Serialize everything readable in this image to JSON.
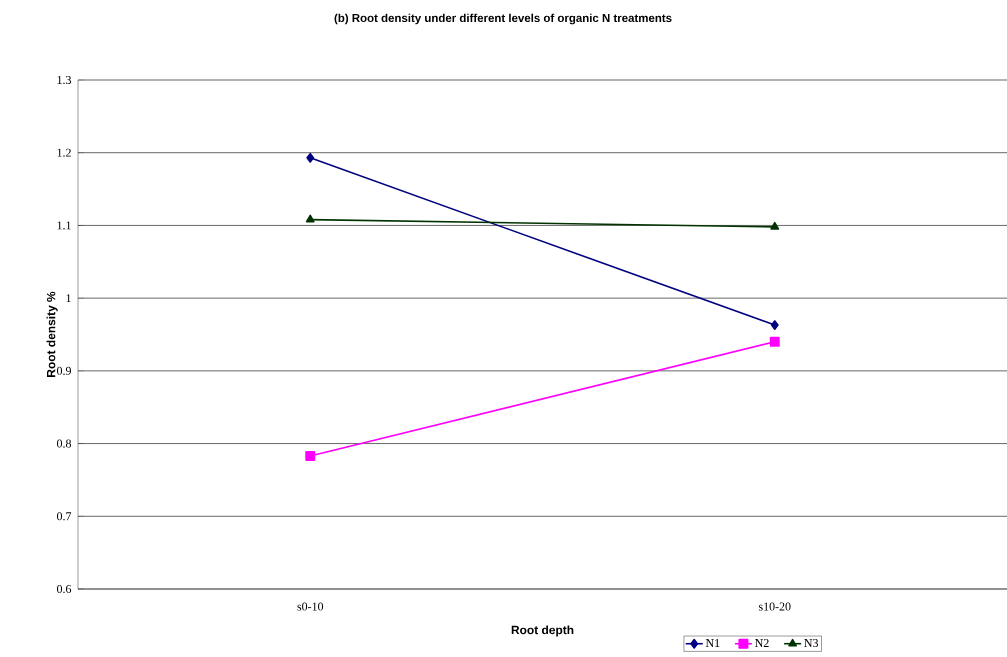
{
  "chart_data": {
    "type": "line",
    "title": "(b) Root density under different levels of organic N treatments",
    "xlabel": "Root depth",
    "ylabel": "Root density %",
    "categories": [
      "s0-10",
      "s10-20"
    ],
    "series": [
      {
        "name": "N1",
        "color": "#000080",
        "marker": "diamond",
        "values": [
          1.193,
          0.963
        ]
      },
      {
        "name": "N2",
        "color": "#ff00ff",
        "marker": "square",
        "values": [
          0.783,
          0.94
        ]
      },
      {
        "name": "N3",
        "color": "#003300",
        "marker": "triangle",
        "values": [
          1.108,
          1.098
        ]
      }
    ],
    "ylim": [
      0.6,
      1.3
    ],
    "yticks": [
      {
        "value": 0.6,
        "label": "0.6"
      },
      {
        "value": 0.7,
        "label": "0.7"
      },
      {
        "value": 0.8,
        "label": "0.8"
      },
      {
        "value": 0.9,
        "label": "0.9"
      },
      {
        "value": 1,
        "label": "1"
      },
      {
        "value": 1.1,
        "label": "1.1"
      },
      {
        "value": 1.2,
        "label": "1.2"
      },
      {
        "value": 1.3,
        "label": "1.3"
      }
    ],
    "grid": "y",
    "legend": "bottom right",
    "line_style": "solid"
  }
}
